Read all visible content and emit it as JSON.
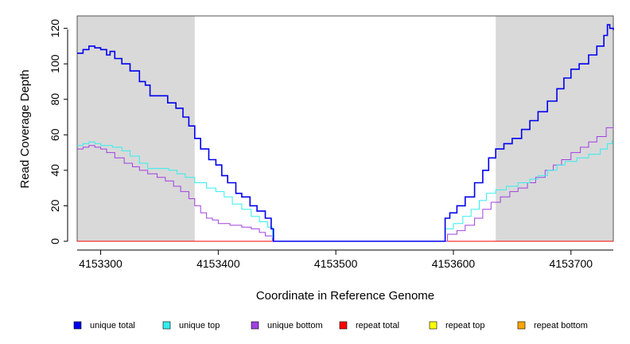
{
  "chart_data": {
    "type": "line",
    "title": "",
    "xlabel": "Coordinate in Reference Genome",
    "ylabel": "Read Coverage Depth",
    "xlim": [
      4153280,
      4153736
    ],
    "ylim": [
      0,
      127
    ],
    "x_ticks": [
      4153300,
      4153400,
      4153500,
      4153600,
      4153700
    ],
    "x_tick_labels": [
      "4153300",
      "4153400",
      "4153500",
      "4153600",
      "4153700"
    ],
    "y_ticks": [
      0,
      20,
      40,
      60,
      80,
      100,
      120
    ],
    "y_tick_labels": [
      "0",
      "20",
      "40",
      "60",
      "80",
      "100",
      "120"
    ],
    "shaded_regions": [
      [
        4153280,
        4153380
      ],
      [
        4153636,
        4153736
      ]
    ],
    "legend_position": "bottom",
    "series": [
      {
        "name": "unique total",
        "color": "#0000ee",
        "points": [
          [
            4153280,
            106
          ],
          [
            4153285,
            108
          ],
          [
            4153290,
            110
          ],
          [
            4153295,
            109
          ],
          [
            4153300,
            108
          ],
          [
            4153305,
            105
          ],
          [
            4153308,
            107
          ],
          [
            4153312,
            103
          ],
          [
            4153318,
            100
          ],
          [
            4153325,
            96
          ],
          [
            4153333,
            90
          ],
          [
            4153338,
            88
          ],
          [
            4153342,
            82
          ],
          [
            4153350,
            82
          ],
          [
            4153357,
            78
          ],
          [
            4153364,
            75
          ],
          [
            4153370,
            70
          ],
          [
            4153375,
            65
          ],
          [
            4153380,
            58
          ],
          [
            4153385,
            52
          ],
          [
            4153392,
            46
          ],
          [
            4153398,
            43
          ],
          [
            4153403,
            37
          ],
          [
            4153408,
            33
          ],
          [
            4153415,
            27
          ],
          [
            4153420,
            25
          ],
          [
            4153427,
            20
          ],
          [
            4153433,
            17
          ],
          [
            4153440,
            13
          ],
          [
            4153445,
            7
          ],
          [
            4153447,
            0
          ],
          [
            4153591,
            0
          ],
          [
            4153593,
            13
          ],
          [
            4153597,
            16
          ],
          [
            4153603,
            20
          ],
          [
            4153610,
            25
          ],
          [
            4153618,
            33
          ],
          [
            4153625,
            40
          ],
          [
            4153630,
            47
          ],
          [
            4153636,
            52
          ],
          [
            4153643,
            55
          ],
          [
            4153650,
            58
          ],
          [
            4153658,
            63
          ],
          [
            4153665,
            68
          ],
          [
            4153672,
            73
          ],
          [
            4153680,
            79
          ],
          [
            4153688,
            86
          ],
          [
            4153694,
            92
          ],
          [
            4153700,
            97
          ],
          [
            4153707,
            100
          ],
          [
            4153715,
            105
          ],
          [
            4153722,
            110
          ],
          [
            4153728,
            116
          ],
          [
            4153731,
            122
          ],
          [
            4153733,
            120
          ],
          [
            4153736,
            119
          ]
        ]
      },
      {
        "name": "unique top",
        "color": "#33eeee",
        "points": [
          [
            4153280,
            54
          ],
          [
            4153285,
            55
          ],
          [
            4153290,
            56
          ],
          [
            4153295,
            55
          ],
          [
            4153300,
            54
          ],
          [
            4153310,
            53
          ],
          [
            4153318,
            51
          ],
          [
            4153325,
            48
          ],
          [
            4153333,
            44
          ],
          [
            4153340,
            41
          ],
          [
            4153350,
            41
          ],
          [
            4153358,
            40
          ],
          [
            4153365,
            38
          ],
          [
            4153372,
            36
          ],
          [
            4153380,
            33
          ],
          [
            4153390,
            30
          ],
          [
            4153398,
            28
          ],
          [
            4153405,
            25
          ],
          [
            4153412,
            21
          ],
          [
            4153420,
            18
          ],
          [
            4153428,
            14
          ],
          [
            4153435,
            11
          ],
          [
            4153442,
            8
          ],
          [
            4153446,
            2
          ],
          [
            4153447,
            0
          ],
          [
            4153591,
            0
          ],
          [
            4153593,
            7
          ],
          [
            4153600,
            10
          ],
          [
            4153608,
            14
          ],
          [
            4153615,
            18
          ],
          [
            4153622,
            23
          ],
          [
            4153628,
            27
          ],
          [
            4153636,
            29
          ],
          [
            4153645,
            31
          ],
          [
            4153655,
            33
          ],
          [
            4153665,
            35
          ],
          [
            4153672,
            37
          ],
          [
            4153680,
            40
          ],
          [
            4153688,
            43
          ],
          [
            4153695,
            45
          ],
          [
            4153705,
            47
          ],
          [
            4153715,
            49
          ],
          [
            4153725,
            52
          ],
          [
            4153731,
            55
          ],
          [
            4153735,
            57
          ]
        ]
      },
      {
        "name": "unique bottom",
        "color": "#a040e0",
        "points": [
          [
            4153280,
            52
          ],
          [
            4153285,
            53
          ],
          [
            4153290,
            54
          ],
          [
            4153295,
            53
          ],
          [
            4153300,
            52
          ],
          [
            4153305,
            50
          ],
          [
            4153312,
            47
          ],
          [
            4153320,
            44
          ],
          [
            4153327,
            42
          ],
          [
            4153333,
            40
          ],
          [
            4153340,
            38
          ],
          [
            4153348,
            36
          ],
          [
            4153355,
            34
          ],
          [
            4153362,
            31
          ],
          [
            4153368,
            28
          ],
          [
            4153375,
            24
          ],
          [
            4153380,
            20
          ],
          [
            4153385,
            16
          ],
          [
            4153390,
            13
          ],
          [
            4153395,
            12
          ],
          [
            4153400,
            10
          ],
          [
            4153410,
            9
          ],
          [
            4153420,
            8
          ],
          [
            4153428,
            7
          ],
          [
            4153435,
            5
          ],
          [
            4153440,
            3
          ],
          [
            4153446,
            0
          ],
          [
            4153591,
            0
          ],
          [
            4153595,
            4
          ],
          [
            4153603,
            6
          ],
          [
            4153610,
            9
          ],
          [
            4153618,
            13
          ],
          [
            4153625,
            18
          ],
          [
            4153632,
            22
          ],
          [
            4153640,
            25
          ],
          [
            4153648,
            28
          ],
          [
            4153655,
            30
          ],
          [
            4153663,
            33
          ],
          [
            4153670,
            36
          ],
          [
            4153678,
            40
          ],
          [
            4153685,
            43
          ],
          [
            4153692,
            46
          ],
          [
            4153700,
            50
          ],
          [
            4153708,
            53
          ],
          [
            4153715,
            56
          ],
          [
            4153722,
            59
          ],
          [
            4153730,
            64
          ],
          [
            4153736,
            63
          ]
        ]
      },
      {
        "name": "repeat total",
        "color": "#ff0000",
        "points": [
          [
            4153280,
            0
          ],
          [
            4153736,
            0
          ]
        ]
      },
      {
        "name": "repeat top",
        "color": "#ffff00",
        "points": [
          [
            4153280,
            0
          ],
          [
            4153736,
            0
          ]
        ]
      },
      {
        "name": "repeat bottom",
        "color": "#ffa500",
        "points": [
          [
            4153280,
            0
          ],
          [
            4153736,
            0
          ]
        ]
      }
    ]
  }
}
